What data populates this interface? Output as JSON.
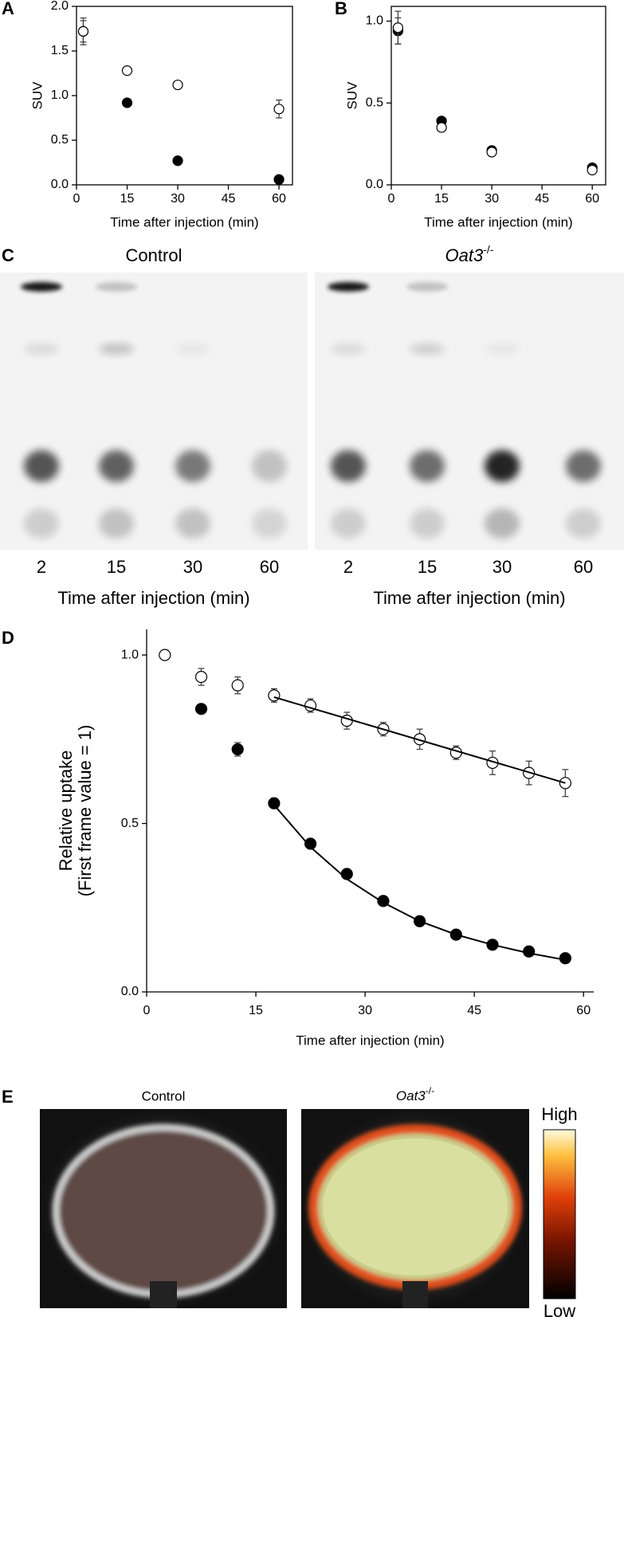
{
  "chart_data": [
    {
      "type": "scatter",
      "xlabel": "Time after injection (min)",
      "ylabel": "SUV",
      "x": [
        2,
        15,
        30,
        60
      ],
      "xlim": [
        0,
        64
      ],
      "xticks": [
        0,
        15,
        30,
        45,
        60
      ],
      "ylim": [
        0,
        2
      ],
      "yticks": [
        {
          "value": 0,
          "label": "0.0"
        },
        {
          "value": 0.5,
          "label": "0.5"
        },
        {
          "value": 1,
          "label": "1.0"
        },
        1.5,
        {
          "value": 2,
          "label": "2.0"
        }
      ],
      "series": [
        {
          "marker": "filled",
          "color": "#000000",
          "values": [
            1.72,
            0.92,
            0.27,
            0.06
          ],
          "errors": [
            0.15,
            null,
            null,
            null
          ]
        },
        {
          "marker": "open",
          "color": "#000000",
          "values": [
            1.72,
            1.28,
            1.12,
            0.85
          ],
          "errors": [
            0.12,
            null,
            null,
            0.1
          ]
        }
      ]
    },
    {
      "type": "scatter",
      "xlabel": "Time after injection (min)",
      "ylabel": "SUV",
      "x": [
        2,
        15,
        30,
        60
      ],
      "xlim": [
        0,
        64
      ],
      "xticks": [
        0,
        15,
        30,
        45,
        60
      ],
      "ylim": [
        0,
        1.09
      ],
      "yticks": [
        {
          "value": 0,
          "label": "0.0"
        },
        0.5,
        {
          "value": 1,
          "label": "1.0"
        }
      ],
      "series": [
        {
          "marker": "filled",
          "color": "#000000",
          "values": [
            0.94,
            0.39,
            0.21,
            0.105
          ],
          "errors": [
            0.08,
            null,
            null,
            null
          ]
        },
        {
          "marker": "open",
          "color": "#000000",
          "values": [
            0.96,
            0.35,
            0.2,
            0.09
          ],
          "errors": [
            0.1,
            null,
            null,
            null
          ]
        }
      ]
    },
    {
      "type": "scatter",
      "xlabel": "Time after injection (min)",
      "ylabel": [
        "Relative uptake",
        "(First frame value = 1)"
      ],
      "xlim": [
        0,
        61.4
      ],
      "xticks": [
        0,
        15,
        30,
        45,
        60
      ],
      "ylim": [
        0,
        1.076
      ],
      "yticks": [
        {
          "value": 0,
          "label": "0.0"
        },
        0.5,
        {
          "value": 1,
          "label": "1.0"
        }
      ],
      "series": [
        {
          "marker": "open",
          "color": "#000000",
          "x": [
            2.5,
            7.5,
            12.5,
            17.5,
            22.5,
            27.5,
            32.5,
            37.5,
            42.5,
            47.5,
            52.5,
            57.5
          ],
          "values": [
            1.0,
            0.935,
            0.91,
            0.88,
            0.85,
            0.805,
            0.78,
            0.75,
            0.71,
            0.68,
            0.65,
            0.62
          ],
          "errors": [
            null,
            0.025,
            0.025,
            0.02,
            0.02,
            0.025,
            0.02,
            0.03,
            0.02,
            0.035,
            0.035,
            0.04
          ]
        },
        {
          "marker": "filled",
          "color": "#000000",
          "x": [
            7.5,
            12.5,
            17.5,
            22.5,
            27.5,
            32.5,
            37.5,
            42.5,
            47.5,
            52.5,
            57.5
          ],
          "values": [
            0.84,
            0.72,
            0.56,
            0.44,
            0.35,
            0.27,
            0.21,
            0.17,
            0.14,
            0.12,
            0.1
          ],
          "errors": [
            null,
            0.02,
            0.015,
            null,
            null,
            null,
            null,
            null,
            null,
            null,
            null
          ]
        },
        {
          "marker": "line",
          "color": "#000000",
          "x": [
            17.5,
            57.5
          ],
          "values": [
            0.875,
            0.62
          ]
        },
        {
          "marker": "line",
          "color": "#000000",
          "x": [
            17.5,
            22.5,
            27.5,
            32.5,
            37.5,
            42.5,
            47.5,
            52.5,
            57.5
          ],
          "values": [
            0.555,
            0.43,
            0.335,
            0.265,
            0.21,
            0.17,
            0.14,
            0.115,
            0.095
          ]
        }
      ]
    }
  ],
  "panels": [
    "A",
    "B",
    "C",
    "D",
    "E"
  ],
  "tlc": {
    "groups": [
      "Control",
      {
        "text": "Oat3",
        "sup": "-/-"
      }
    ],
    "lanes": [
      "2",
      "15",
      "30",
      "60"
    ],
    "xlabel": "Time after injection (min)"
  },
  "pet": {
    "groups": [
      "Control",
      {
        "text": "Oat3",
        "sup": "-/-"
      }
    ],
    "colorbar": {
      "high": "High",
      "low": "Low"
    }
  }
}
